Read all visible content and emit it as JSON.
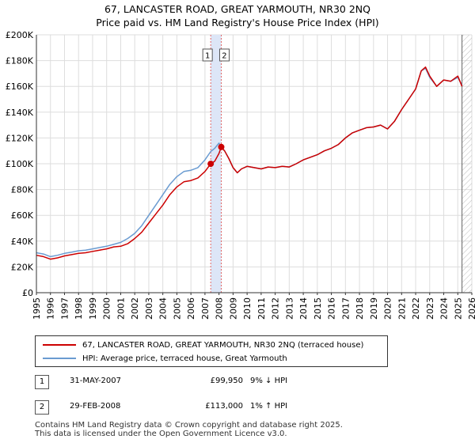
{
  "title": {
    "line1": "67, LANCASTER ROAD, GREAT YARMOUTH, NR30 2NQ",
    "line2": "Price paid vs. HM Land Registry's House Price Index (HPI)"
  },
  "colors": {
    "property_line": "#cc0000",
    "hpi_line": "#6a9bd1",
    "grid": "#dddddd",
    "marker_fill": "#cc0000",
    "shade": "#dde6f7",
    "vline": "#e06666"
  },
  "chart_data": {
    "type": "line",
    "title": "Price paid vs. HM Land Registry's House Price Index (HPI)",
    "xlim": [
      1995,
      2026
    ],
    "ylim": [
      0,
      200000
    ],
    "y_ticks": [
      0,
      20000,
      40000,
      60000,
      80000,
      100000,
      120000,
      140000,
      160000,
      180000,
      200000
    ],
    "y_tick_labels": [
      "£0",
      "£20K",
      "£40K",
      "£60K",
      "£80K",
      "£100K",
      "£120K",
      "£140K",
      "£160K",
      "£180K",
      "£200K"
    ],
    "x_ticks": [
      1995,
      1996,
      1997,
      1998,
      1999,
      2000,
      2001,
      2002,
      2003,
      2004,
      2005,
      2006,
      2007,
      2008,
      2009,
      2010,
      2011,
      2012,
      2013,
      2014,
      2015,
      2016,
      2017,
      2018,
      2019,
      2020,
      2021,
      2022,
      2023,
      2024,
      2025,
      2026
    ],
    "x_tick_labels": [
      "1995",
      "1996",
      "1997",
      "1998",
      "1999",
      "2000",
      "2001",
      "2002",
      "2003",
      "2004",
      "2005",
      "2006",
      "2007",
      "2008",
      "2009",
      "2010",
      "2011",
      "2012",
      "2013",
      "2014",
      "2015",
      "2016",
      "2017",
      "2018",
      "2019",
      "2020",
      "2021",
      "2022",
      "2023",
      "2024",
      "2025",
      "2026"
    ],
    "grid": true,
    "future_hatch_from": 2025.3,
    "sale_shade": [
      2007.41,
      2008.16
    ],
    "series": [
      {
        "name": "67, LANCASTER ROAD, GREAT YARMOUTH, NR30 2NQ (terraced house)",
        "x": [
          1995.0,
          1995.5,
          1996.0,
          1996.5,
          1997.0,
          1997.5,
          1998.0,
          1998.5,
          1999.0,
          1999.5,
          2000.0,
          2000.5,
          2001.0,
          2001.5,
          2002.0,
          2002.5,
          2003.0,
          2003.5,
          2004.0,
          2004.5,
          2005.0,
          2005.5,
          2006.0,
          2006.5,
          2007.0,
          2007.41,
          2007.7,
          2008.0,
          2008.16,
          2008.4,
          2008.7,
          2009.0,
          2009.3,
          2009.6,
          2010.0,
          2010.5,
          2011.0,
          2011.5,
          2012.0,
          2012.5,
          2013.0,
          2013.5,
          2014.0,
          2014.5,
          2015.0,
          2015.5,
          2016.0,
          2016.5,
          2017.0,
          2017.5,
          2018.0,
          2018.5,
          2019.0,
          2019.5,
          2020.0,
          2020.5,
          2021.0,
          2021.5,
          2022.0,
          2022.4,
          2022.7,
          2023.0,
          2023.5,
          2024.0,
          2024.5,
          2025.0,
          2025.3
        ],
        "values": [
          29000,
          28000,
          26000,
          27000,
          28500,
          29500,
          30500,
          31000,
          32000,
          33000,
          34000,
          35500,
          36000,
          38000,
          42000,
          47000,
          54000,
          61000,
          68000,
          76000,
          82000,
          86000,
          87000,
          89000,
          94000,
          99950,
          102000,
          108000,
          113000,
          110000,
          104000,
          97000,
          93000,
          96000,
          98000,
          97000,
          96000,
          97500,
          97000,
          98000,
          97500,
          100000,
          103000,
          105000,
          107000,
          110000,
          112000,
          115000,
          120000,
          124000,
          126000,
          128000,
          128500,
          130000,
          127000,
          133000,
          142000,
          150000,
          158000,
          172000,
          175000,
          168000,
          160000,
          165000,
          164000,
          168000,
          160000
        ]
      },
      {
        "name": "HPI: Average price, terraced house, Great Yarmouth",
        "x": [
          1995.0,
          1995.5,
          1996.0,
          1996.5,
          1997.0,
          1997.5,
          1998.0,
          1998.5,
          1999.0,
          1999.5,
          2000.0,
          2000.5,
          2001.0,
          2001.5,
          2002.0,
          2002.5,
          2003.0,
          2003.5,
          2004.0,
          2004.5,
          2005.0,
          2005.5,
          2006.0,
          2006.5,
          2007.0,
          2007.41,
          2007.7,
          2008.0,
          2008.16,
          2008.4,
          2008.7,
          2009.0,
          2009.3,
          2009.6,
          2010.0,
          2010.5,
          2011.0,
          2011.5,
          2012.0,
          2012.5,
          2013.0,
          2013.5,
          2014.0,
          2014.5,
          2015.0,
          2015.5,
          2016.0,
          2016.5,
          2017.0,
          2017.5,
          2018.0,
          2018.5,
          2019.0,
          2019.5,
          2020.0,
          2020.5,
          2021.0,
          2021.5,
          2022.0,
          2022.4,
          2022.7,
          2023.0,
          2023.5,
          2024.0,
          2024.5,
          2025.0,
          2025.3
        ],
        "values": [
          31000,
          30000,
          28000,
          29000,
          30500,
          31500,
          32500,
          33000,
          34000,
          35000,
          36000,
          37500,
          39000,
          42000,
          46000,
          52000,
          60000,
          68000,
          76000,
          84000,
          90000,
          94000,
          95000,
          97000,
          103000,
          109500,
          112000,
          116000,
          112500,
          110000,
          104000,
          97000,
          93000,
          96000,
          98000,
          97000,
          96000,
          97500,
          97000,
          98000,
          97500,
          100000,
          103000,
          105000,
          107000,
          110000,
          112000,
          115000,
          120000,
          124000,
          126000,
          128000,
          128500,
          130000,
          127000,
          133000,
          142000,
          150000,
          158000,
          172000,
          174000,
          167000,
          160000,
          165000,
          164000,
          167000,
          161000
        ]
      }
    ],
    "sales": [
      {
        "id": "1",
        "x": 2007.41,
        "y": 99950
      },
      {
        "id": "2",
        "x": 2008.16,
        "y": 113000
      }
    ]
  },
  "legend": {
    "property_label": "67, LANCASTER ROAD, GREAT YARMOUTH, NR30 2NQ (terraced house)",
    "hpi_label": "HPI: Average price, terraced house, Great Yarmouth"
  },
  "transactions": [
    {
      "num": "1",
      "date": "31-MAY-2007",
      "price": "£99,950",
      "hpi": "9% ↓ HPI"
    },
    {
      "num": "2",
      "date": "29-FEB-2008",
      "price": "£113,000",
      "hpi": "1% ↑ HPI"
    }
  ],
  "footer": {
    "line1": "Contains HM Land Registry data © Crown copyright and database right 2025.",
    "line2": "This data is licensed under the Open Government Licence v3.0."
  }
}
